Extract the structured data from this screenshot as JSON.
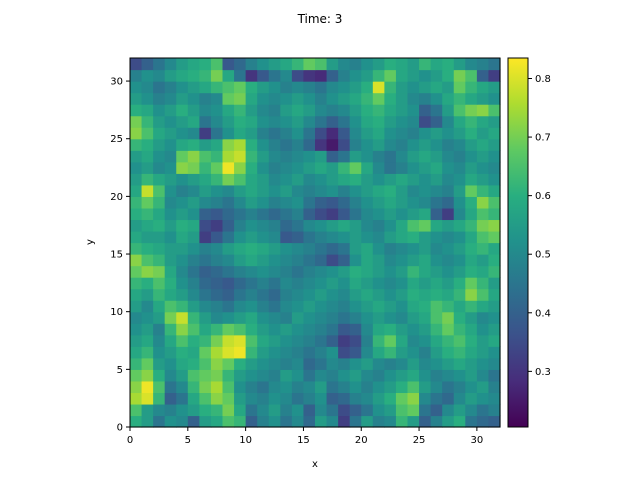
{
  "chart_data": {
    "type": "heatmap",
    "title": "Time: 3",
    "xlabel": "x",
    "ylabel": "y",
    "xlim": [
      0,
      32
    ],
    "ylim": [
      0,
      32
    ],
    "x_ticks": [
      0,
      5,
      10,
      15,
      20,
      25,
      30
    ],
    "y_ticks": [
      0,
      5,
      10,
      15,
      20,
      25,
      30
    ],
    "grid": false,
    "colormap": "viridis",
    "colorbar": {
      "vmin": 0.205,
      "vmax": 0.835,
      "ticks": [
        0.3,
        0.4,
        0.5,
        0.6,
        0.7,
        0.8
      ]
    },
    "grid_shape": [
      32,
      32
    ],
    "cell_values_row_order": "bottom-to-top",
    "values": [
      [
        0.6,
        0.55,
        0.45,
        0.52,
        0.5,
        0.4,
        0.55,
        0.58,
        0.65,
        0.62,
        0.4,
        0.48,
        0.52,
        0.45,
        0.5,
        0.42,
        0.55,
        0.5,
        0.32,
        0.45,
        0.55,
        0.48,
        0.5,
        0.62,
        0.55,
        0.4,
        0.48,
        0.55,
        0.6,
        0.45,
        0.42,
        0.4
      ],
      [
        0.65,
        0.55,
        0.5,
        0.48,
        0.52,
        0.55,
        0.6,
        0.62,
        0.7,
        0.58,
        0.45,
        0.5,
        0.55,
        0.48,
        0.52,
        0.4,
        0.5,
        0.45,
        0.35,
        0.4,
        0.45,
        0.52,
        0.55,
        0.65,
        0.68,
        0.45,
        0.4,
        0.5,
        0.55,
        0.5,
        0.45,
        0.48
      ],
      [
        0.75,
        0.8,
        0.62,
        0.4,
        0.45,
        0.58,
        0.65,
        0.72,
        0.68,
        0.55,
        0.5,
        0.48,
        0.52,
        0.5,
        0.45,
        0.48,
        0.52,
        0.4,
        0.42,
        0.48,
        0.5,
        0.55,
        0.6,
        0.68,
        0.72,
        0.5,
        0.45,
        0.42,
        0.5,
        0.55,
        0.52,
        0.5
      ],
      [
        0.72,
        0.82,
        0.65,
        0.45,
        0.5,
        0.62,
        0.7,
        0.75,
        0.65,
        0.52,
        0.48,
        0.45,
        0.5,
        0.52,
        0.48,
        0.5,
        0.55,
        0.45,
        0.48,
        0.52,
        0.48,
        0.52,
        0.55,
        0.6,
        0.65,
        0.55,
        0.5,
        0.45,
        0.48,
        0.52,
        0.55,
        0.48
      ],
      [
        0.68,
        0.72,
        0.6,
        0.5,
        0.55,
        0.65,
        0.68,
        0.7,
        0.62,
        0.55,
        0.52,
        0.5,
        0.48,
        0.55,
        0.52,
        0.45,
        0.5,
        0.48,
        0.52,
        0.55,
        0.5,
        0.48,
        0.52,
        0.55,
        0.58,
        0.52,
        0.48,
        0.5,
        0.52,
        0.55,
        0.5,
        0.45
      ],
      [
        0.62,
        0.68,
        0.55,
        0.52,
        0.58,
        0.6,
        0.65,
        0.72,
        0.68,
        0.6,
        0.55,
        0.52,
        0.5,
        0.48,
        0.5,
        0.42,
        0.45,
        0.5,
        0.48,
        0.52,
        0.55,
        0.5,
        0.48,
        0.5,
        0.55,
        0.5,
        0.52,
        0.55,
        0.58,
        0.55,
        0.52,
        0.5
      ],
      [
        0.58,
        0.62,
        0.52,
        0.55,
        0.6,
        0.58,
        0.68,
        0.75,
        0.8,
        0.82,
        0.62,
        0.55,
        0.52,
        0.5,
        0.48,
        0.45,
        0.48,
        0.52,
        0.35,
        0.38,
        0.5,
        0.58,
        0.62,
        0.55,
        0.52,
        0.48,
        0.55,
        0.6,
        0.62,
        0.58,
        0.55,
        0.52
      ],
      [
        0.55,
        0.58,
        0.5,
        0.58,
        0.65,
        0.6,
        0.62,
        0.7,
        0.78,
        0.8,
        0.65,
        0.58,
        0.55,
        0.52,
        0.5,
        0.48,
        0.45,
        0.4,
        0.32,
        0.35,
        0.48,
        0.62,
        0.68,
        0.58,
        0.5,
        0.52,
        0.58,
        0.62,
        0.65,
        0.6,
        0.55,
        0.58
      ],
      [
        0.52,
        0.55,
        0.48,
        0.62,
        0.72,
        0.65,
        0.58,
        0.62,
        0.68,
        0.65,
        0.6,
        0.55,
        0.52,
        0.55,
        0.52,
        0.5,
        0.48,
        0.45,
        0.38,
        0.4,
        0.5,
        0.58,
        0.6,
        0.55,
        0.52,
        0.55,
        0.62,
        0.68,
        0.62,
        0.58,
        0.52,
        0.55
      ],
      [
        0.5,
        0.52,
        0.55,
        0.7,
        0.78,
        0.62,
        0.55,
        0.5,
        0.52,
        0.55,
        0.58,
        0.52,
        0.5,
        0.48,
        0.55,
        0.52,
        0.5,
        0.48,
        0.45,
        0.48,
        0.52,
        0.55,
        0.52,
        0.5,
        0.55,
        0.58,
        0.65,
        0.7,
        0.6,
        0.55,
        0.5,
        0.52
      ],
      [
        0.55,
        0.5,
        0.58,
        0.65,
        0.62,
        0.55,
        0.5,
        0.48,
        0.45,
        0.5,
        0.52,
        0.48,
        0.45,
        0.5,
        0.52,
        0.55,
        0.52,
        0.5,
        0.48,
        0.52,
        0.55,
        0.58,
        0.55,
        0.52,
        0.58,
        0.6,
        0.65,
        0.62,
        0.58,
        0.62,
        0.58,
        0.55
      ],
      [
        0.58,
        0.55,
        0.62,
        0.58,
        0.55,
        0.5,
        0.45,
        0.42,
        0.4,
        0.45,
        0.48,
        0.45,
        0.42,
        0.48,
        0.5,
        0.52,
        0.55,
        0.52,
        0.5,
        0.55,
        0.58,
        0.55,
        0.52,
        0.55,
        0.6,
        0.58,
        0.6,
        0.58,
        0.62,
        0.72,
        0.65,
        0.58
      ],
      [
        0.62,
        0.6,
        0.65,
        0.6,
        0.52,
        0.48,
        0.42,
        0.4,
        0.38,
        0.42,
        0.45,
        0.48,
        0.45,
        0.5,
        0.48,
        0.5,
        0.52,
        0.55,
        0.52,
        0.58,
        0.55,
        0.52,
        0.5,
        0.52,
        0.58,
        0.55,
        0.58,
        0.55,
        0.6,
        0.68,
        0.62,
        0.55
      ],
      [
        0.68,
        0.72,
        0.7,
        0.58,
        0.5,
        0.45,
        0.4,
        0.42,
        0.45,
        0.48,
        0.5,
        0.52,
        0.5,
        0.48,
        0.45,
        0.48,
        0.5,
        0.52,
        0.55,
        0.6,
        0.58,
        0.55,
        0.52,
        0.55,
        0.62,
        0.58,
        0.55,
        0.52,
        0.55,
        0.6,
        0.58,
        0.62
      ],
      [
        0.72,
        0.65,
        0.62,
        0.55,
        0.52,
        0.48,
        0.45,
        0.48,
        0.5,
        0.55,
        0.58,
        0.55,
        0.52,
        0.5,
        0.48,
        0.45,
        0.42,
        0.35,
        0.4,
        0.52,
        0.58,
        0.55,
        0.5,
        0.52,
        0.55,
        0.58,
        0.52,
        0.5,
        0.52,
        0.58,
        0.55,
        0.6
      ],
      [
        0.62,
        0.6,
        0.58,
        0.55,
        0.55,
        0.52,
        0.48,
        0.5,
        0.55,
        0.58,
        0.6,
        0.58,
        0.55,
        0.52,
        0.5,
        0.48,
        0.45,
        0.42,
        0.45,
        0.55,
        0.58,
        0.52,
        0.48,
        0.5,
        0.52,
        0.55,
        0.5,
        0.52,
        0.55,
        0.6,
        0.62,
        0.58
      ],
      [
        0.58,
        0.55,
        0.55,
        0.52,
        0.58,
        0.55,
        0.32,
        0.38,
        0.45,
        0.52,
        0.55,
        0.52,
        0.5,
        0.38,
        0.4,
        0.45,
        0.48,
        0.5,
        0.52,
        0.55,
        0.52,
        0.5,
        0.55,
        0.58,
        0.6,
        0.55,
        0.52,
        0.5,
        0.52,
        0.58,
        0.65,
        0.68
      ],
      [
        0.55,
        0.58,
        0.6,
        0.55,
        0.6,
        0.58,
        0.35,
        0.32,
        0.4,
        0.48,
        0.52,
        0.5,
        0.48,
        0.42,
        0.45,
        0.5,
        0.52,
        0.55,
        0.58,
        0.55,
        0.5,
        0.48,
        0.52,
        0.58,
        0.65,
        0.68,
        0.58,
        0.55,
        0.58,
        0.62,
        0.7,
        0.72
      ],
      [
        0.6,
        0.62,
        0.58,
        0.52,
        0.55,
        0.52,
        0.4,
        0.38,
        0.42,
        0.45,
        0.48,
        0.45,
        0.42,
        0.45,
        0.48,
        0.4,
        0.35,
        0.32,
        0.38,
        0.45,
        0.5,
        0.52,
        0.55,
        0.52,
        0.55,
        0.58,
        0.4,
        0.32,
        0.5,
        0.58,
        0.65,
        0.62
      ],
      [
        0.62,
        0.68,
        0.62,
        0.5,
        0.52,
        0.55,
        0.5,
        0.48,
        0.45,
        0.5,
        0.55,
        0.52,
        0.48,
        0.5,
        0.52,
        0.45,
        0.4,
        0.38,
        0.42,
        0.48,
        0.52,
        0.55,
        0.58,
        0.55,
        0.52,
        0.5,
        0.45,
        0.42,
        0.52,
        0.6,
        0.72,
        0.65
      ],
      [
        0.58,
        0.78,
        0.65,
        0.52,
        0.48,
        0.5,
        0.55,
        0.52,
        0.5,
        0.55,
        0.58,
        0.55,
        0.52,
        0.55,
        0.5,
        0.48,
        0.5,
        0.52,
        0.48,
        0.52,
        0.55,
        0.58,
        0.6,
        0.55,
        0.5,
        0.52,
        0.5,
        0.48,
        0.55,
        0.68,
        0.62,
        0.58
      ],
      [
        0.55,
        0.62,
        0.58,
        0.55,
        0.52,
        0.55,
        0.58,
        0.62,
        0.7,
        0.65,
        0.58,
        0.55,
        0.5,
        0.52,
        0.55,
        0.5,
        0.52,
        0.55,
        0.58,
        0.6,
        0.55,
        0.52,
        0.55,
        0.58,
        0.55,
        0.52,
        0.55,
        0.5,
        0.52,
        0.58,
        0.55,
        0.52
      ],
      [
        0.52,
        0.55,
        0.5,
        0.52,
        0.72,
        0.7,
        0.62,
        0.68,
        0.82,
        0.72,
        0.6,
        0.52,
        0.48,
        0.5,
        0.52,
        0.55,
        0.58,
        0.55,
        0.62,
        0.68,
        0.58,
        0.5,
        0.45,
        0.48,
        0.52,
        0.55,
        0.58,
        0.52,
        0.5,
        0.55,
        0.52,
        0.5
      ],
      [
        0.55,
        0.58,
        0.52,
        0.5,
        0.68,
        0.72,
        0.65,
        0.62,
        0.75,
        0.78,
        0.62,
        0.55,
        0.5,
        0.48,
        0.5,
        0.52,
        0.55,
        0.4,
        0.45,
        0.55,
        0.52,
        0.48,
        0.45,
        0.5,
        0.55,
        0.58,
        0.55,
        0.5,
        0.48,
        0.52,
        0.55,
        0.52
      ],
      [
        0.62,
        0.6,
        0.55,
        0.52,
        0.58,
        0.6,
        0.55,
        0.58,
        0.72,
        0.75,
        0.6,
        0.52,
        0.48,
        0.45,
        0.48,
        0.42,
        0.3,
        0.25,
        0.35,
        0.48,
        0.52,
        0.55,
        0.5,
        0.48,
        0.52,
        0.55,
        0.52,
        0.48,
        0.5,
        0.55,
        0.58,
        0.55
      ],
      [
        0.72,
        0.65,
        0.58,
        0.55,
        0.52,
        0.5,
        0.32,
        0.45,
        0.52,
        0.58,
        0.55,
        0.48,
        0.45,
        0.48,
        0.52,
        0.45,
        0.35,
        0.28,
        0.38,
        0.5,
        0.55,
        0.58,
        0.52,
        0.5,
        0.48,
        0.52,
        0.55,
        0.52,
        0.55,
        0.6,
        0.55,
        0.58
      ],
      [
        0.7,
        0.62,
        0.55,
        0.52,
        0.55,
        0.58,
        0.45,
        0.5,
        0.55,
        0.6,
        0.58,
        0.52,
        0.5,
        0.52,
        0.55,
        0.5,
        0.45,
        0.4,
        0.45,
        0.52,
        0.58,
        0.6,
        0.55,
        0.52,
        0.5,
        0.35,
        0.4,
        0.5,
        0.58,
        0.62,
        0.58,
        0.55
      ],
      [
        0.6,
        0.58,
        0.52,
        0.55,
        0.6,
        0.55,
        0.5,
        0.52,
        0.58,
        0.62,
        0.55,
        0.5,
        0.48,
        0.55,
        0.58,
        0.55,
        0.5,
        0.48,
        0.5,
        0.55,
        0.6,
        0.62,
        0.58,
        0.55,
        0.52,
        0.4,
        0.45,
        0.55,
        0.65,
        0.7,
        0.72,
        0.65
      ],
      [
        0.55,
        0.52,
        0.48,
        0.5,
        0.55,
        0.52,
        0.48,
        0.5,
        0.68,
        0.7,
        0.58,
        0.52,
        0.5,
        0.52,
        0.55,
        0.52,
        0.48,
        0.52,
        0.55,
        0.58,
        0.62,
        0.68,
        0.6,
        0.55,
        0.5,
        0.48,
        0.52,
        0.58,
        0.62,
        0.58,
        0.55,
        0.52
      ],
      [
        0.52,
        0.5,
        0.45,
        0.48,
        0.52,
        0.55,
        0.58,
        0.62,
        0.65,
        0.68,
        0.6,
        0.55,
        0.52,
        0.48,
        0.5,
        0.48,
        0.45,
        0.5,
        0.52,
        0.55,
        0.6,
        0.8,
        0.62,
        0.55,
        0.52,
        0.55,
        0.58,
        0.55,
        0.68,
        0.62,
        0.58,
        0.55
      ],
      [
        0.48,
        0.52,
        0.5,
        0.55,
        0.58,
        0.6,
        0.62,
        0.7,
        0.58,
        0.45,
        0.3,
        0.38,
        0.45,
        0.5,
        0.35,
        0.3,
        0.28,
        0.4,
        0.48,
        0.52,
        0.55,
        0.62,
        0.68,
        0.58,
        0.55,
        0.52,
        0.55,
        0.6,
        0.7,
        0.65,
        0.4,
        0.32
      ],
      [
        0.35,
        0.4,
        0.45,
        0.5,
        0.55,
        0.58,
        0.6,
        0.65,
        0.38,
        0.42,
        0.48,
        0.52,
        0.55,
        0.58,
        0.62,
        0.68,
        0.65,
        0.55,
        0.5,
        0.48,
        0.52,
        0.55,
        0.6,
        0.58,
        0.55,
        0.62,
        0.58,
        0.6,
        0.55,
        0.5,
        0.48,
        0.45
      ]
    ]
  }
}
